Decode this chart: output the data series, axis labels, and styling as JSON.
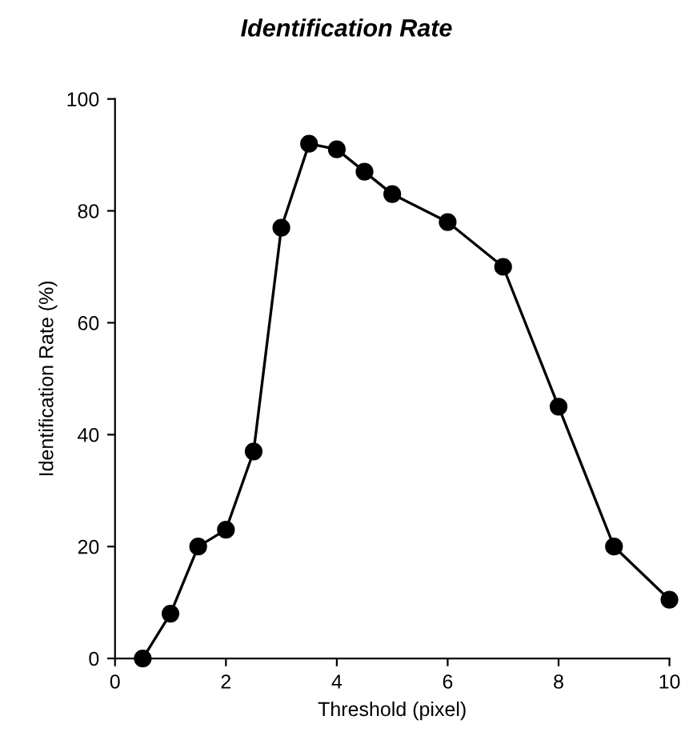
{
  "chart_data": {
    "type": "line",
    "title": "Identification Rate",
    "xlabel": "Threshold (pixel)",
    "ylabel": "Identification Rate (%)",
    "x": [
      0.5,
      1,
      1.5,
      2,
      2.5,
      3,
      3.5,
      4,
      4.5,
      5,
      6,
      7,
      8,
      9,
      10
    ],
    "series": [
      {
        "color": "#000000",
        "values": [
          0,
          8,
          20,
          23,
          37,
          77,
          92,
          91,
          87,
          83,
          78,
          70,
          45,
          20,
          10.5
        ]
      }
    ],
    "xlim": [
      0,
      10
    ],
    "ylim": [
      0,
      100
    ],
    "xticks": [
      0,
      2,
      4,
      6,
      8,
      10
    ],
    "yticks": [
      0,
      20,
      40,
      60,
      80,
      100
    ],
    "marker": "circle",
    "line_style": "solid",
    "grid": false,
    "legend": false
  }
}
